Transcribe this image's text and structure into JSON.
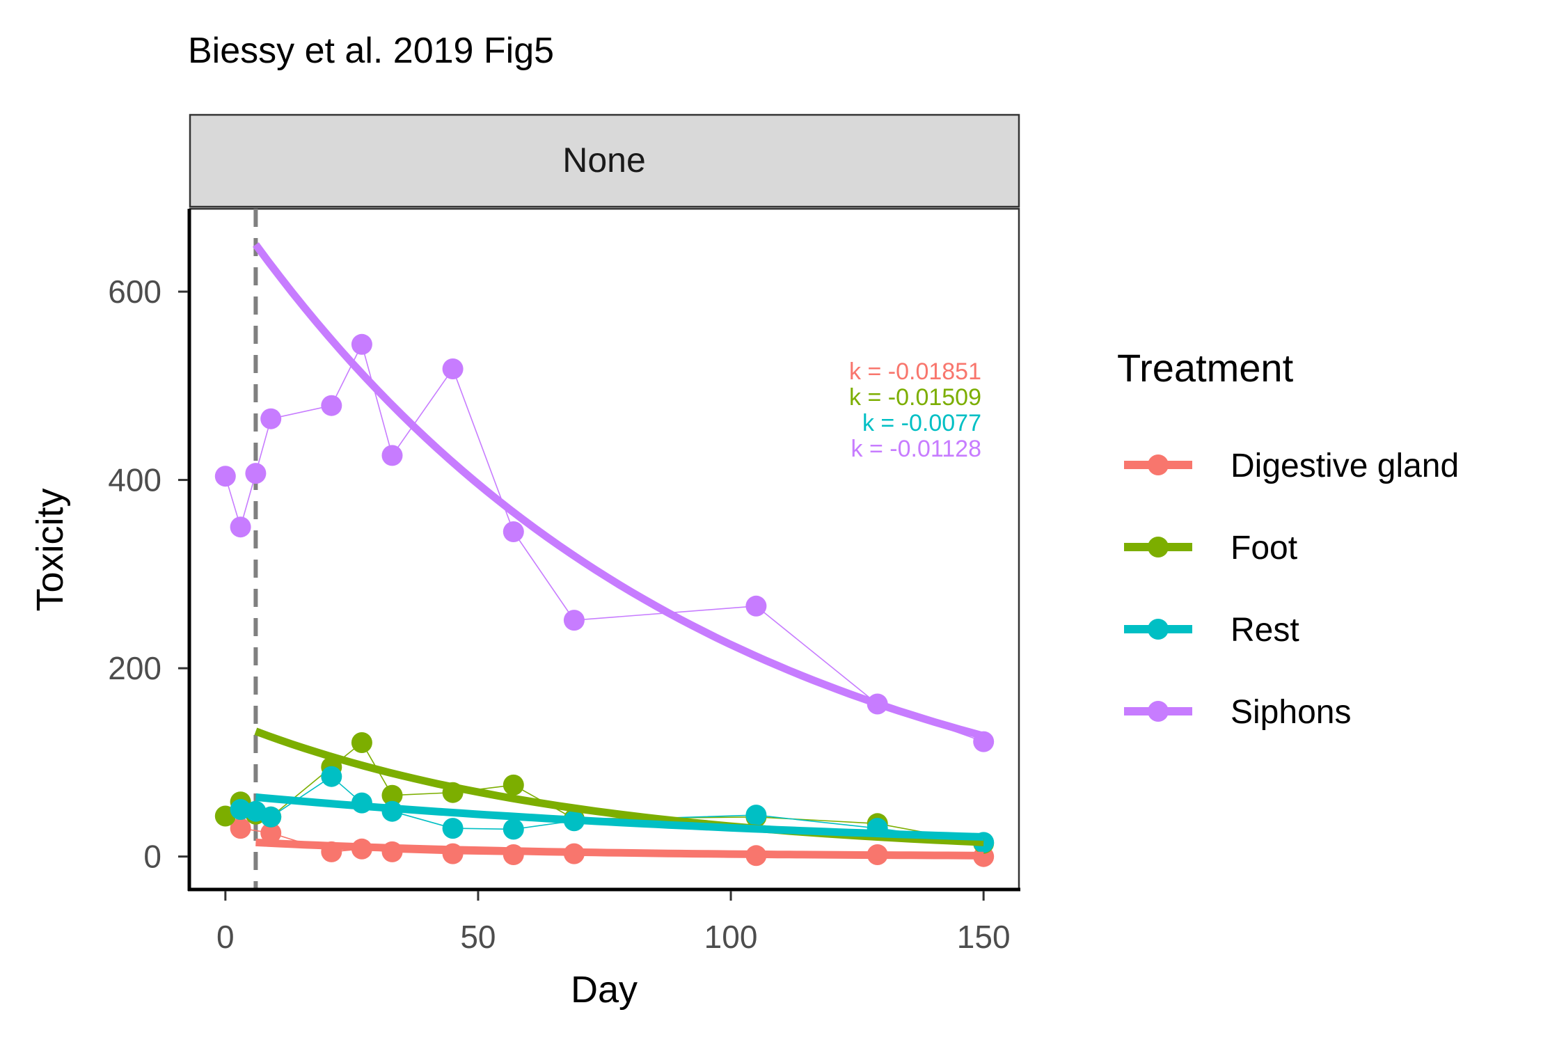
{
  "chart_data": {
    "type": "line",
    "title": "Biessy et al. 2019 Fig5",
    "facet_label": "None",
    "xlabel": "Day",
    "ylabel": "Toxicity",
    "xlim": [
      -7,
      157
    ],
    "ylim": [
      -35,
      688
    ],
    "x_ticks": [
      0,
      50,
      100,
      150
    ],
    "y_ticks": [
      0,
      200,
      400,
      600
    ],
    "vline_x": 6,
    "fit_start_x": 6,
    "fit_end_x": 150,
    "grid": false,
    "legend": {
      "title": "Treatment",
      "position": "right"
    },
    "series": [
      {
        "name": "Digestive gland",
        "color": "#F8766D",
        "k": -0.01851,
        "k_label": "k = -0.01851",
        "fit_y0": 15,
        "x": [
          3,
          9,
          21,
          27,
          33,
          45,
          57,
          69,
          105,
          129,
          150
        ],
        "y": [
          30,
          25,
          5,
          8,
          5,
          3,
          2,
          3,
          1,
          2,
          0
        ]
      },
      {
        "name": "Foot",
        "color": "#7CAE00",
        "k": -0.01509,
        "k_label": "k = -0.01509",
        "fit_y0": 133,
        "x": [
          0,
          3,
          6,
          9,
          21,
          27,
          33,
          45,
          57,
          69,
          105,
          129,
          150
        ],
        "y": [
          43,
          58,
          45,
          42,
          95,
          121,
          65,
          68,
          76,
          40,
          42,
          35,
          14
        ]
      },
      {
        "name": "Rest",
        "color": "#00BFC4",
        "k": -0.0077,
        "k_label": "k = -0.0077",
        "fit_y0": 63,
        "x": [
          3,
          6,
          9,
          21,
          27,
          33,
          45,
          57,
          69,
          105,
          129,
          150
        ],
        "y": [
          50,
          48,
          42,
          85,
          57,
          48,
          30,
          29,
          38,
          44,
          30,
          15
        ]
      },
      {
        "name": "Siphons",
        "color": "#C77CFF",
        "k": -0.01128,
        "k_label": "k = -0.01128",
        "fit_y0": 650,
        "x": [
          0,
          3,
          6,
          9,
          21,
          27,
          33,
          45,
          57,
          69,
          105,
          129,
          150
        ],
        "y": [
          404,
          350,
          407,
          465,
          479,
          544,
          426,
          518,
          345,
          251,
          266,
          162,
          122
        ]
      }
    ]
  }
}
